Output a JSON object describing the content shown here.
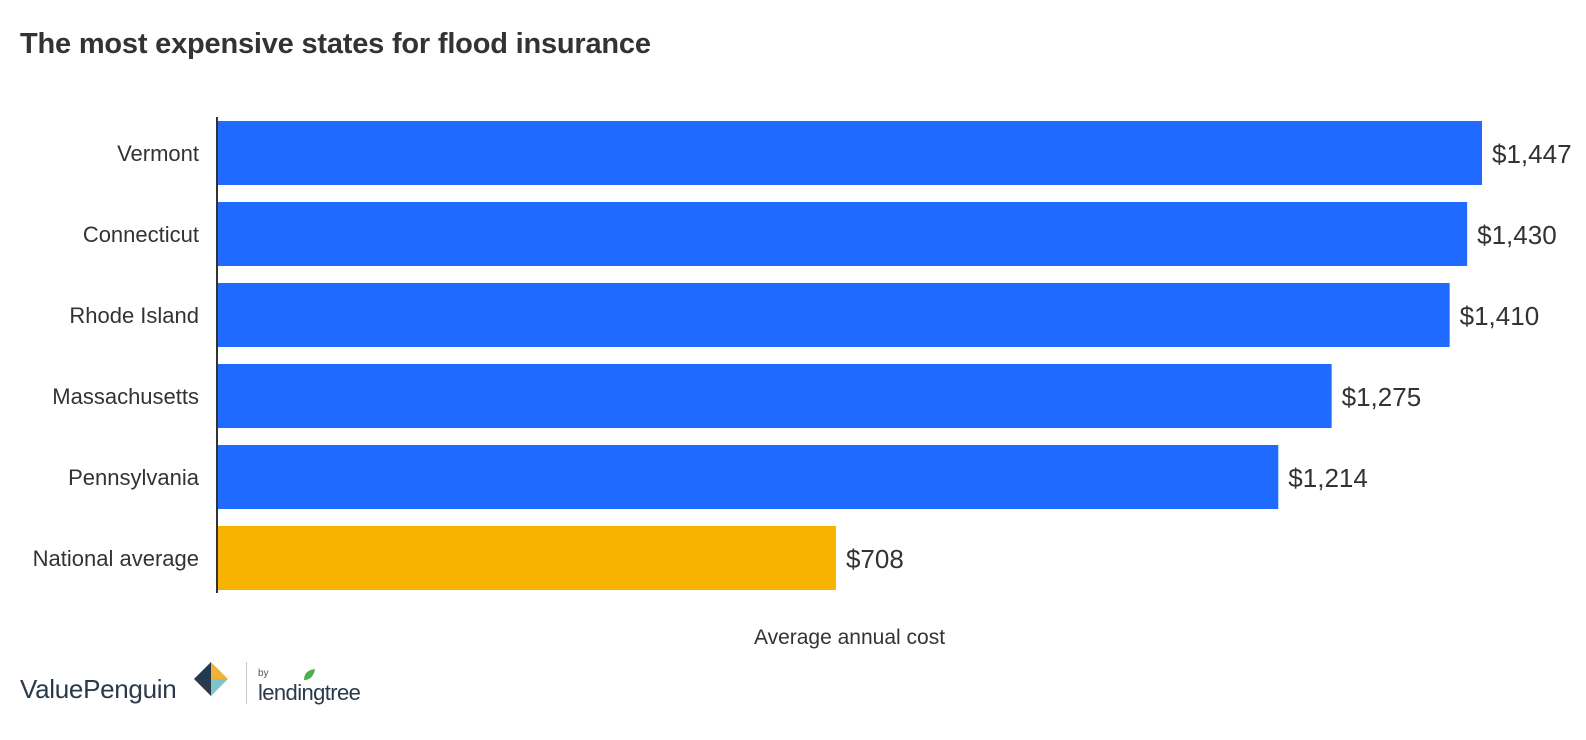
{
  "chart_data": {
    "type": "bar",
    "orientation": "horizontal",
    "title": "The most expensive states for flood insurance",
    "xlabel": "Average annual cost",
    "ylabel": "",
    "categories": [
      "Vermont",
      "Connecticut",
      "Rhode Island",
      "Massachusetts",
      "Pennsylvania",
      "National average"
    ],
    "values": [
      1447,
      1430,
      1410,
      1275,
      1214,
      708
    ],
    "value_labels": [
      "$1,447",
      "$1,430",
      "$1,410",
      "$1,275",
      "$1,214",
      "$708"
    ],
    "bar_colors": [
      "#1f6bff",
      "#1f6bff",
      "#1f6bff",
      "#1f6bff",
      "#1f6bff",
      "#f8b200"
    ],
    "xlim": [
      0,
      1447
    ],
    "grid": false,
    "legend": "none"
  },
  "branding": {
    "brand": "ValuePenguin",
    "by": "by",
    "partner": "lendingtree"
  },
  "colors": {
    "primary_bar": "#1f6bff",
    "highlight_bar": "#f8b200",
    "text": "#333333",
    "axis": "#333333"
  }
}
